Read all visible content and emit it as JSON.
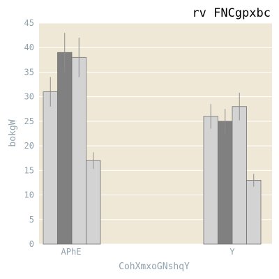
{
  "chart_data": {
    "type": "bar",
    "title": "rv FNCgpxbc",
    "xlabel": "CohXmxoGNshqY",
    "ylabel": "bokgW",
    "categories": [
      "APhE",
      "Y"
    ],
    "ylim": [
      0,
      45
    ],
    "yticks": [
      0,
      5,
      10,
      15,
      20,
      25,
      30,
      35,
      40,
      45
    ],
    "grid": true,
    "series": [
      {
        "values": [
          31,
          26
        ],
        "errors": [
          3,
          2.5
        ],
        "color": "#d3d3d3"
      },
      {
        "values": [
          39,
          25
        ],
        "errors": [
          4,
          2.5
        ],
        "color": "#808080"
      },
      {
        "values": [
          38,
          28
        ],
        "errors": [
          4,
          2.8
        ],
        "color": "#d3d3d3"
      },
      {
        "values": [
          17,
          13
        ],
        "errors": [
          1.7,
          1.3
        ],
        "color": "#d3d3d3"
      }
    ],
    "colors": {
      "background": "#f0e8d6",
      "grid": "#ffffff",
      "axis_text": "#8fa1ac",
      "error_bar": "#8c8c8c",
      "bar_edge": "#707070"
    }
  }
}
